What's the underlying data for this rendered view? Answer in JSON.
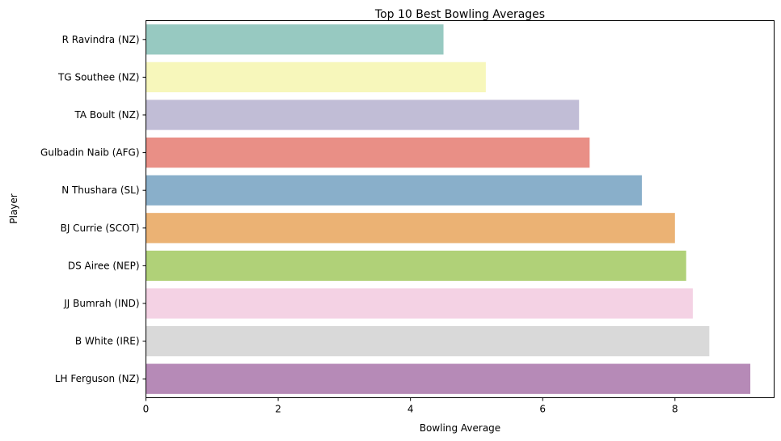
{
  "chart_data": {
    "type": "bar",
    "orientation": "horizontal",
    "title": "Top 10 Best Bowling Averages",
    "xlabel": "Bowling Average",
    "ylabel": "Player",
    "xlim": [
      0,
      9.5
    ],
    "xticks": [
      0,
      2,
      4,
      6,
      8
    ],
    "grid": false,
    "categories": [
      "R Ravindra (NZ)",
      "TG Southee (NZ)",
      "TA Boult (NZ)",
      "Gulbadin Naib (AFG)",
      "N Thushara (SL)",
      "BJ Currie (SCOT)",
      "DS Airee (NEP)",
      "JJ Bumrah (IND)",
      "B White (IRE)",
      "LH Ferguson (NZ)"
    ],
    "values": [
      4.5,
      5.14,
      6.55,
      6.71,
      7.5,
      8.0,
      8.17,
      8.27,
      8.52,
      9.14
    ],
    "colors": [
      "#97c9c1",
      "#f7f7bb",
      "#c1bdd6",
      "#e98f86",
      "#89afca",
      "#ebb274",
      "#b0d178",
      "#f4d2e4",
      "#d9d9d9",
      "#b68ab7"
    ]
  }
}
